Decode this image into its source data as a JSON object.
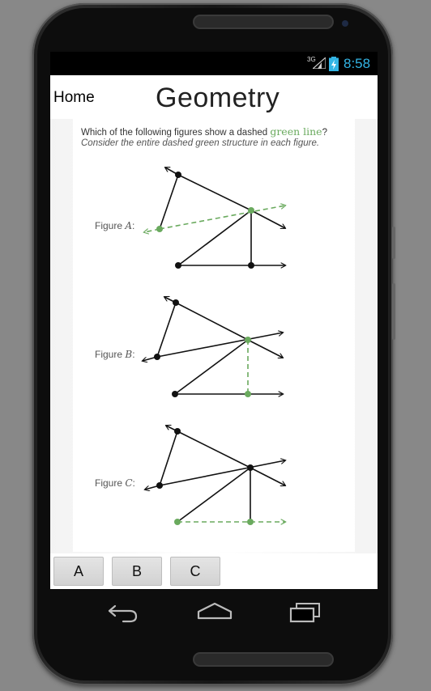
{
  "status_bar": {
    "network": "3G",
    "time": "8:58",
    "icons": [
      "signal-icon",
      "battery-charging-icon"
    ]
  },
  "header": {
    "home_label": "Home",
    "title": "Geometry"
  },
  "question": {
    "prompt_before": "Which of the following figures show a dashed ",
    "prompt_highlight": "green line",
    "prompt_after": "?",
    "instruction": "Consider the entire dashed green structure in each figure."
  },
  "figures": [
    {
      "label": "Figure",
      "letter": "A",
      "suffix": ":"
    },
    {
      "label": "Figure",
      "letter": "B",
      "suffix": ":"
    },
    {
      "label": "Figure",
      "letter": "C",
      "suffix": ":"
    }
  ],
  "answers": [
    "A",
    "B",
    "C"
  ],
  "navigation": {
    "icons": [
      "back-icon",
      "home-icon",
      "recent-apps-icon"
    ]
  },
  "colors": {
    "accent_green": "#6aaa5e",
    "status_time": "#33b5e5"
  }
}
